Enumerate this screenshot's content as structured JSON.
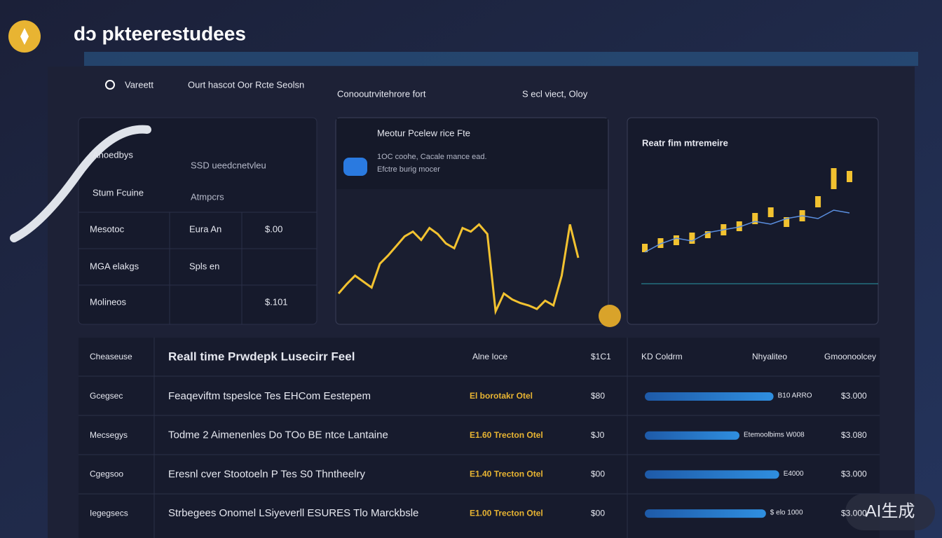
{
  "header": {
    "title": "dɔ pkteerestudees"
  },
  "nav": [
    "Vareett",
    "Ourt hascot Oor Rcte Seolsn",
    "Conooutrvitehrore fort",
    "S ecl viect, Oloy"
  ],
  "left_card": {
    "top": [
      [
        "Anoedbys",
        "SSD ueedcnetvleu"
      ],
      [
        "Stum Fcuine",
        "Atmpcrs"
      ]
    ],
    "rows": [
      [
        "Mesotoc",
        "Eura An",
        "$.00"
      ],
      [
        "MGA elakgs",
        "Spls en",
        ""
      ],
      [
        "Molineos",
        "",
        "$.101"
      ]
    ]
  },
  "price_card": {
    "title": "Meotur Pcelew rice Fte",
    "lines": [
      "1OC coohe, Cacale mance ead.",
      "Efctre burig mocer"
    ],
    "chart": {
      "type": "line",
      "color": "#f2c230",
      "values": [
        30,
        38,
        45,
        40,
        35,
        55,
        62,
        70,
        78,
        82,
        75,
        85,
        80,
        72,
        68,
        85,
        82,
        88,
        80,
        15,
        30,
        25,
        22,
        20,
        17,
        24,
        20,
        45,
        88,
        60
      ]
    }
  },
  "realtime_card": {
    "title": "Reatr fim mtremeire",
    "chart": {
      "type": "candlestick",
      "color": "#f2c230",
      "open": [
        30,
        33,
        35,
        36,
        40,
        42,
        45,
        50,
        55,
        48,
        52,
        62,
        75,
        80
      ],
      "close": [
        36,
        40,
        42,
        44,
        45,
        50,
        52,
        58,
        62,
        55,
        60,
        70,
        90,
        88
      ],
      "line_color": "#5b8fe0",
      "line": [
        30,
        36,
        40,
        38,
        44,
        46,
        48,
        52,
        50,
        54,
        56,
        54,
        60,
        58
      ]
    }
  },
  "table": {
    "header": [
      "Cheaseuse",
      "Reall time Prwdepk Lusecirr Feel",
      "Alne Ioce",
      "$1C1",
      "KD Coldrm",
      "Nhyaliteo",
      "Gmoonoolcey"
    ],
    "rows": [
      [
        "Gcegsec",
        "Feaqeviftm tspeslce Tes EHCom Eestepem",
        "El borotakr Otel",
        "$80",
        "B10 ARRO",
        "$3.000"
      ],
      [
        "Mecsegys",
        "Todme 2 Aimenenles Do TOo BE ntce Lantaine",
        "E1.60 Trecton Otel",
        "$J0",
        "Etemoolbims W008",
        "$3.080"
      ],
      [
        "Cgegsoo",
        "Eresnl cver Stootoeln P Tes S0 Thntheelry",
        "E1.40 Trecton Otel",
        "$00",
        "E4000",
        "$3.000"
      ],
      [
        "Iegegsecs",
        "Strbegees Onomel LSiyeverll ESURES Tlo Marckbsle",
        "E1.00 Trecton Otel",
        "$00",
        "$ elo 1000",
        "$3.000"
      ]
    ],
    "bar_values": [
      68,
      50,
      71,
      64
    ]
  },
  "badge": "AI生成"
}
